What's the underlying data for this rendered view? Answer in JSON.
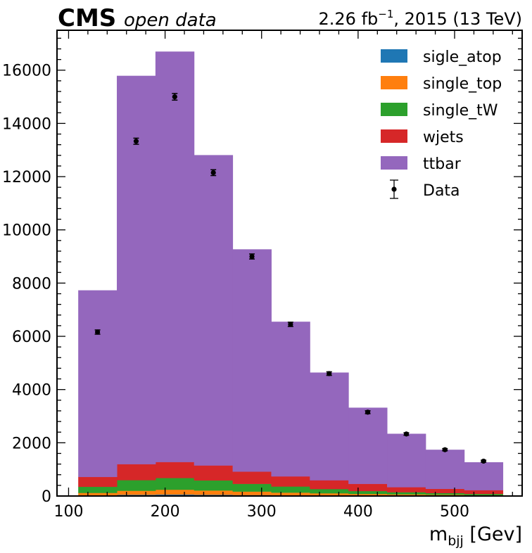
{
  "header": {
    "experiment": "CMS",
    "subtitle": "open data",
    "lumi_value": "2.26 fb",
    "lumi_exponent": "−1",
    "lumi_suffix": ", 2015 (13 TeV)"
  },
  "chart_data": {
    "type": "bar",
    "stacked": true,
    "bin_edges": [
      110,
      150,
      190,
      230,
      270,
      310,
      350,
      390,
      430,
      470,
      510,
      550
    ],
    "x_tick_labels": [
      "100",
      "200",
      "300",
      "400",
      "500"
    ],
    "y_tick_labels": [
      "0",
      "2000",
      "4000",
      "6000",
      "8000",
      "10000",
      "12000",
      "14000",
      "16000"
    ],
    "xlim": [
      88,
      570
    ],
    "ylim": [
      0,
      17500
    ],
    "xlabel_main": "m",
    "xlabel_sub": "bjj",
    "xlabel_unit": " [Gev]",
    "ylabel": "",
    "legend_position": "top-right",
    "grid": false,
    "series": [
      {
        "name": "sigle_atop",
        "color": "#1f77b4",
        "values": [
          20,
          50,
          60,
          50,
          40,
          30,
          25,
          20,
          15,
          12,
          8
        ]
      },
      {
        "name": "single_top",
        "color": "#ff7f0e",
        "values": [
          100,
          150,
          180,
          160,
          130,
          100,
          80,
          60,
          50,
          40,
          30
        ]
      },
      {
        "name": "single_tW",
        "color": "#2ca02c",
        "values": [
          230,
          400,
          440,
          380,
          290,
          230,
          160,
          110,
          80,
          60,
          45
        ]
      },
      {
        "name": "wjets",
        "color": "#d62728",
        "values": [
          370,
          600,
          600,
          560,
          460,
          380,
          330,
          270,
          190,
          160,
          140
        ]
      },
      {
        "name": "ttbar",
        "color": "#9467bd",
        "values": [
          7010,
          14590,
          15420,
          11660,
          8350,
          5810,
          4045,
          2860,
          2005,
          1468,
          1047
        ]
      }
    ],
    "data_points": {
      "name": "Data",
      "x": [
        130,
        170,
        210,
        250,
        290,
        330,
        370,
        410,
        450,
        490,
        530
      ],
      "y": [
        6160,
        13330,
        15000,
        12150,
        9000,
        6450,
        4600,
        3150,
        2330,
        1740,
        1310
      ],
      "yerr": [
        80,
        115,
        125,
        110,
        95,
        80,
        68,
        56,
        48,
        42,
        36
      ]
    }
  }
}
